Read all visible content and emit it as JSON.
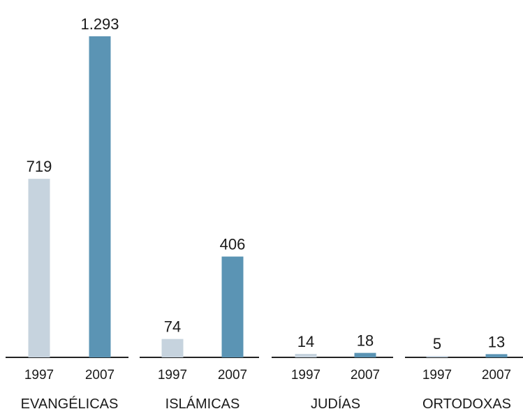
{
  "chart_data": {
    "type": "bar",
    "categories": [
      "EVANGÉLICAS",
      "ISLÁMICAS",
      "JUDÍAS",
      "ORTODOXAS"
    ],
    "x_sublabels": [
      "1997",
      "2007"
    ],
    "series": [
      {
        "values": [
          719,
          74,
          14,
          5
        ],
        "value_labels": [
          "719",
          "74",
          "14",
          "5"
        ]
      },
      {
        "values": [
          1293,
          406,
          18,
          13
        ],
        "value_labels": [
          "1.293",
          "406",
          "18",
          "13"
        ]
      }
    ],
    "ylim": [
      0,
      1293
    ],
    "grid": false,
    "legend": "none"
  },
  "colors": {
    "series_1997": "#c6d3de",
    "series_2007": "#5b94b4",
    "axis": "#222222",
    "text": "#1a1a1a"
  }
}
